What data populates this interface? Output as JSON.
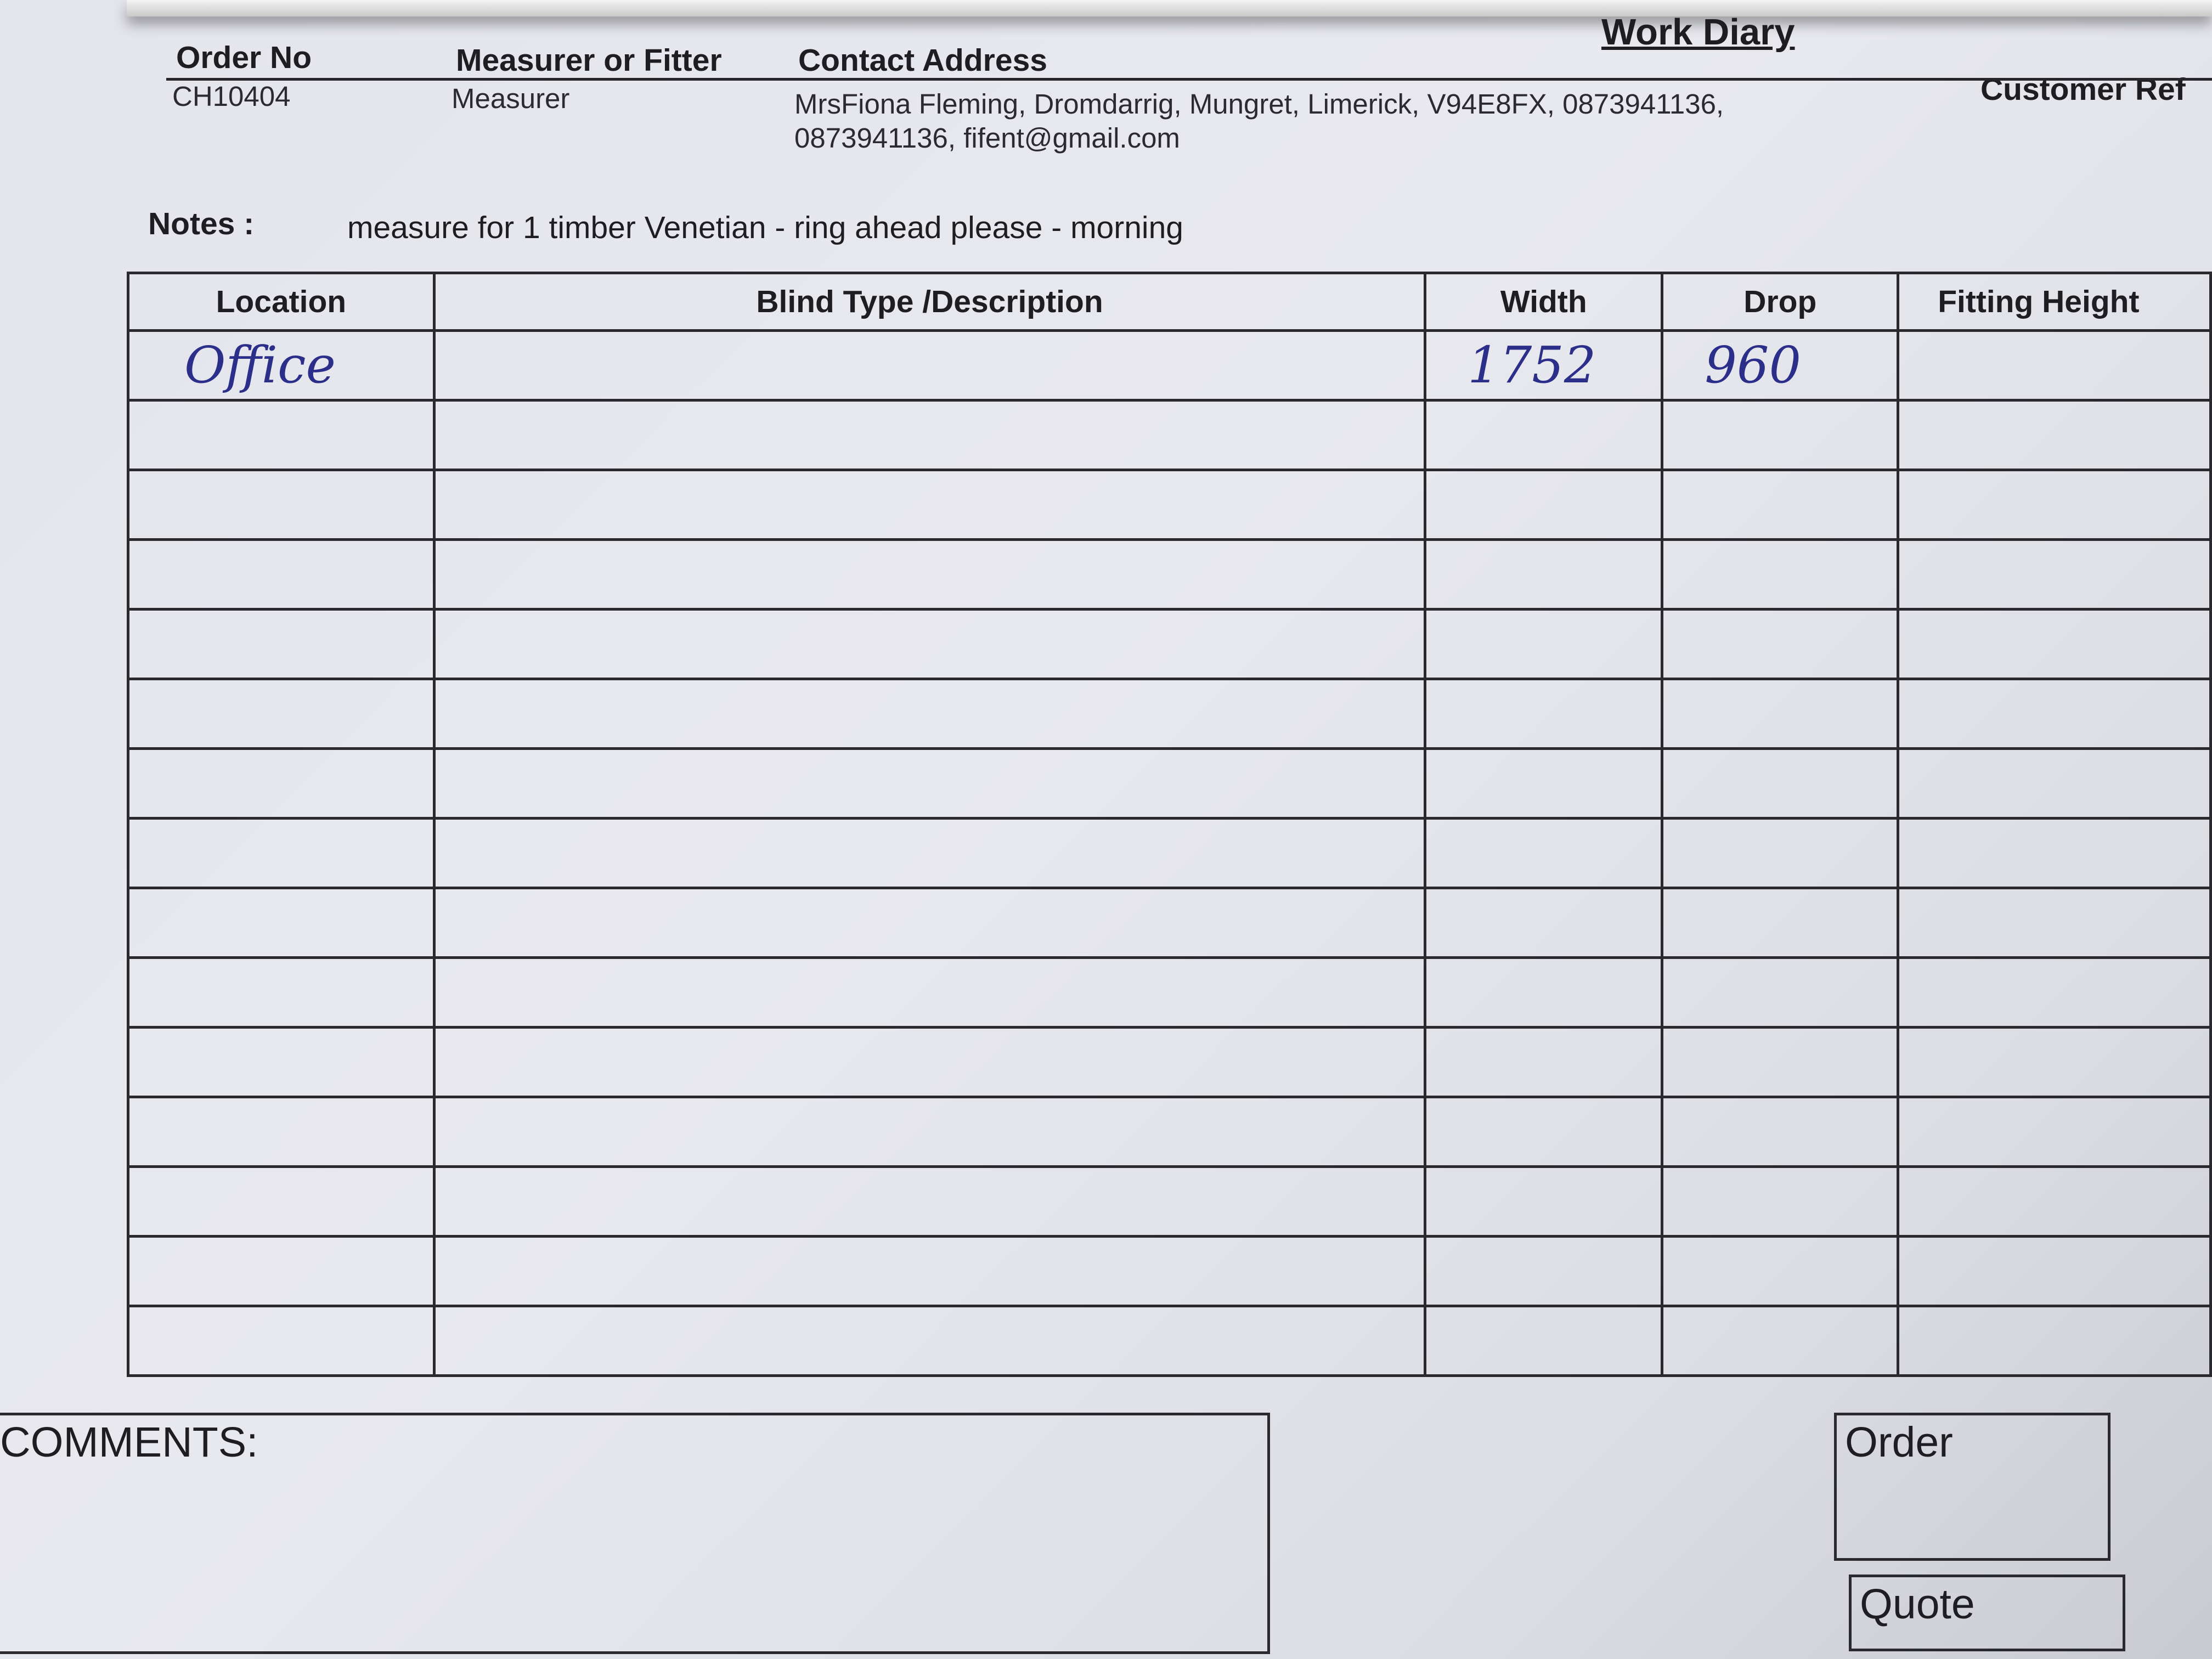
{
  "document": {
    "title": "Work Diary",
    "fields": {
      "order_no_label": "Order No",
      "order_no": "CH10404",
      "measurer_label": "Measurer or Fitter",
      "measurer": "Measurer",
      "address_label": "Contact Address",
      "address_line1": "MrsFiona Fleming, Dromdarrig, Mungret, Limerick, V94E8FX, 0873941136,",
      "address_line2": "0873941136, fifent@gmail.com",
      "customer_ref_label": "Customer Ref"
    },
    "notes_label": "Notes :",
    "notes": "measure for 1 timber Venetian - ring ahead please - morning",
    "table": {
      "columns": [
        "Location",
        "Blind Type /Description",
        "Width",
        "Drop",
        "Fitting Height"
      ],
      "rows": [
        [
          "Office",
          "",
          "1752",
          "960",
          ""
        ],
        [
          "",
          "",
          "",
          "",
          ""
        ],
        [
          "",
          "",
          "",
          "",
          ""
        ],
        [
          "",
          "",
          "",
          "",
          ""
        ],
        [
          "",
          "",
          "",
          "",
          ""
        ],
        [
          "",
          "",
          "",
          "",
          ""
        ],
        [
          "",
          "",
          "",
          "",
          ""
        ],
        [
          "",
          "",
          "",
          "",
          ""
        ],
        [
          "",
          "",
          "",
          "",
          ""
        ],
        [
          "",
          "",
          "",
          "",
          ""
        ],
        [
          "",
          "",
          "",
          "",
          ""
        ],
        [
          "",
          "",
          "",
          "",
          ""
        ],
        [
          "",
          "",
          "",
          "",
          ""
        ],
        [
          "",
          "",
          "",
          "",
          ""
        ],
        [
          "",
          "",
          "",
          "",
          ""
        ]
      ]
    },
    "comments_label": "COMMENTS:",
    "order_box_label": "Order",
    "quote_box_label": "Quote"
  }
}
